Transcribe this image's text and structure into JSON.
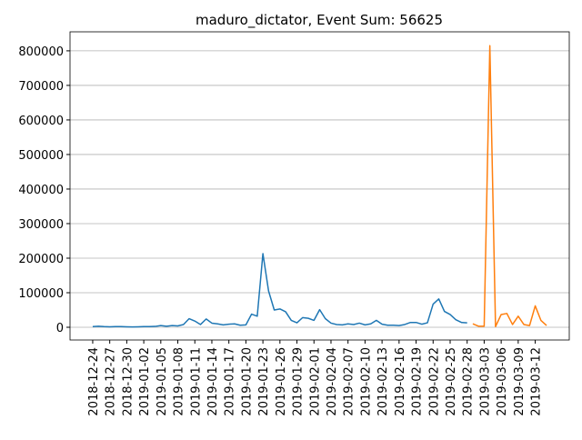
{
  "chart_data": {
    "type": "line",
    "title": "maduro_dictator, Event Sum: 56625",
    "xlim": [
      "2018-12-20",
      "2019-03-18"
    ],
    "xticks": [
      "2018-12-24",
      "2018-12-27",
      "2018-12-30",
      "2019-01-02",
      "2019-01-05",
      "2019-01-08",
      "2019-01-11",
      "2019-01-14",
      "2019-01-17",
      "2019-01-20",
      "2019-01-23",
      "2019-01-26",
      "2019-01-29",
      "2019-02-01",
      "2019-02-04",
      "2019-02-07",
      "2019-02-10",
      "2019-02-13",
      "2019-02-16",
      "2019-02-19",
      "2019-02-22",
      "2019-02-25",
      "2019-02-28",
      "2019-03-03",
      "2019-03-06",
      "2019-03-09",
      "2019-03-12"
    ],
    "ylim": [
      -36800,
      855000
    ],
    "yticks": [
      0,
      100000,
      200000,
      300000,
      400000,
      500000,
      600000,
      700000,
      800000
    ],
    "grid": "y",
    "series": [
      {
        "color": "#1f77b4",
        "x": [
          "2018-12-24",
          "2018-12-25",
          "2018-12-26",
          "2018-12-27",
          "2018-12-28",
          "2018-12-29",
          "2018-12-30",
          "2018-12-31",
          "2019-01-01",
          "2019-01-02",
          "2019-01-03",
          "2019-01-04",
          "2019-01-05",
          "2019-01-06",
          "2019-01-07",
          "2019-01-08",
          "2019-01-09",
          "2019-01-10",
          "2019-01-11",
          "2019-01-12",
          "2019-01-13",
          "2019-01-14",
          "2019-01-15",
          "2019-01-16",
          "2019-01-17",
          "2019-01-18",
          "2019-01-19",
          "2019-01-20",
          "2019-01-21",
          "2019-01-22",
          "2019-01-23",
          "2019-01-24",
          "2019-01-25",
          "2019-01-26",
          "2019-01-27",
          "2019-01-28",
          "2019-01-29",
          "2019-01-30",
          "2019-01-31",
          "2019-02-01",
          "2019-02-02",
          "2019-02-03",
          "2019-02-04",
          "2019-02-05",
          "2019-02-06",
          "2019-02-07",
          "2019-02-08",
          "2019-02-09",
          "2019-02-10",
          "2019-02-11",
          "2019-02-12",
          "2019-02-13",
          "2019-02-14",
          "2019-02-15",
          "2019-02-16",
          "2019-02-17",
          "2019-02-18",
          "2019-02-19",
          "2019-02-20",
          "2019-02-21",
          "2019-02-22",
          "2019-02-23",
          "2019-02-24",
          "2019-02-25",
          "2019-02-26",
          "2019-02-27",
          "2019-02-28"
        ],
        "values": [
          2000,
          3000,
          2000,
          1500,
          2000,
          2000,
          1500,
          1000,
          1500,
          2000,
          2000,
          2500,
          5000,
          3000,
          5000,
          4000,
          8000,
          25000,
          18000,
          8000,
          24000,
          12000,
          10000,
          7000,
          9000,
          10000,
          6000,
          7000,
          38000,
          32000,
          213000,
          105000,
          50000,
          53000,
          45000,
          20000,
          13000,
          28000,
          26000,
          20000,
          51000,
          25000,
          12000,
          8000,
          7000,
          10000,
          8000,
          12000,
          7000,
          10000,
          20000,
          9000,
          6000,
          6000,
          5000,
          8000,
          14000,
          14000,
          9000,
          13000,
          67000,
          82000,
          46000,
          37000,
          22000,
          14000,
          13000
        ]
      },
      {
        "color": "#ff7f0e",
        "x": [
          "2019-03-01",
          "2019-03-02",
          "2019-03-03",
          "2019-03-04",
          "2019-03-05",
          "2019-03-06",
          "2019-03-07",
          "2019-03-08",
          "2019-03-09",
          "2019-03-10",
          "2019-03-11",
          "2019-03-12",
          "2019-03-13",
          "2019-03-14"
        ],
        "values": [
          10000,
          3000,
          3000,
          815000,
          2000,
          37000,
          40000,
          8000,
          32000,
          8000,
          5000,
          62000,
          20000,
          5000
        ]
      }
    ]
  }
}
